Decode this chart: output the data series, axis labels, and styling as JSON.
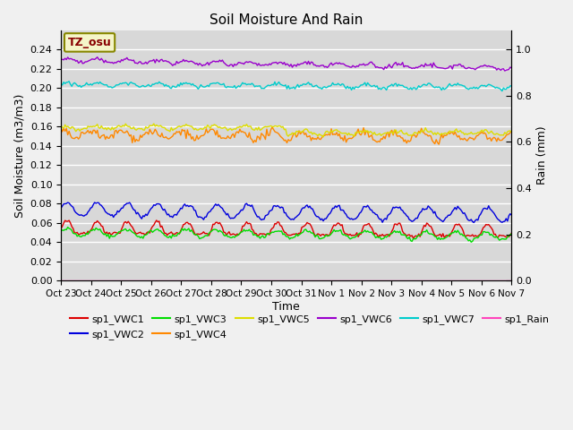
{
  "title": "Soil Moisture And Rain",
  "xlabel": "Time",
  "ylabel_left": "Soil Moisture (m3/m3)",
  "ylabel_right": "Rain (mm)",
  "x_tick_labels": [
    "Oct 23",
    "Oct 24",
    "Oct 25",
    "Oct 26",
    "Oct 27",
    "Oct 28",
    "Oct 29",
    "Oct 30",
    "Oct 31",
    "Nov 1",
    "Nov 2",
    "Nov 3",
    "Nov 4",
    "Nov 5",
    "Nov 6",
    "Nov 7"
  ],
  "ylim_left": [
    0.0,
    0.26
  ],
  "ylim_right": [
    0.0,
    1.082
  ],
  "background_color": "#d8d8d8",
  "annotation_text": "TZ_osu",
  "annotation_bg": "#f5f5c8",
  "annotation_border": "#888800",
  "series_colors": {
    "sp1_VWC1": "#dd0000",
    "sp1_VWC2": "#0000dd",
    "sp1_VWC3": "#00dd00",
    "sp1_VWC4": "#ff8800",
    "sp1_VWC5": "#dddd00",
    "sp1_VWC6": "#9900cc",
    "sp1_VWC7": "#00cccc",
    "sp1_Rain": "#ff44bb"
  },
  "n_points": 336
}
